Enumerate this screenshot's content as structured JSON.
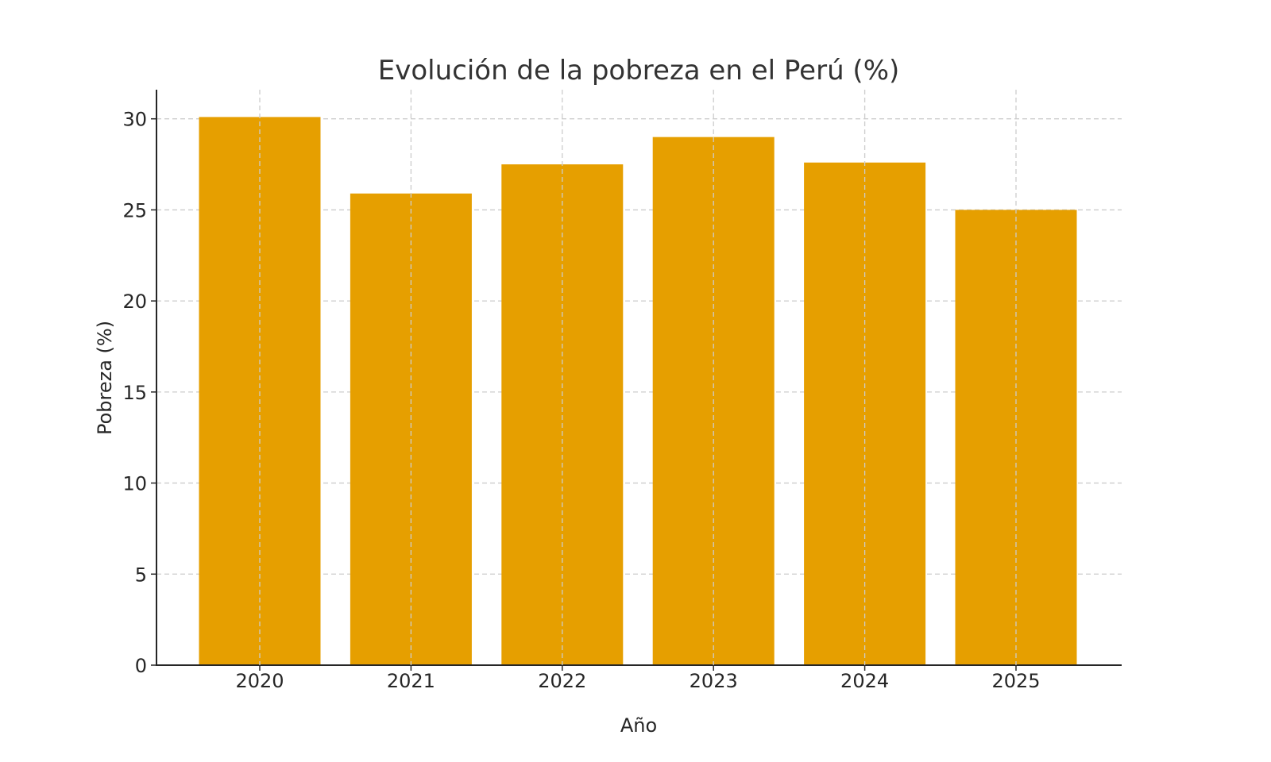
{
  "chart_data": {
    "type": "bar",
    "title": "Evolución de la pobreza en el Perú (%)",
    "xlabel": "Año",
    "ylabel": "Pobreza (%)",
    "categories": [
      "2020",
      "2021",
      "2022",
      "2023",
      "2024",
      "2025"
    ],
    "values": [
      30.1,
      25.9,
      27.5,
      29.0,
      27.6,
      25.0
    ],
    "ylim": [
      0,
      31.6
    ],
    "yticks": [
      0,
      5,
      10,
      15,
      20,
      25,
      30
    ],
    "grid": true,
    "grid_style": "dashed",
    "bar_color": "#E69F00",
    "legend": null
  }
}
